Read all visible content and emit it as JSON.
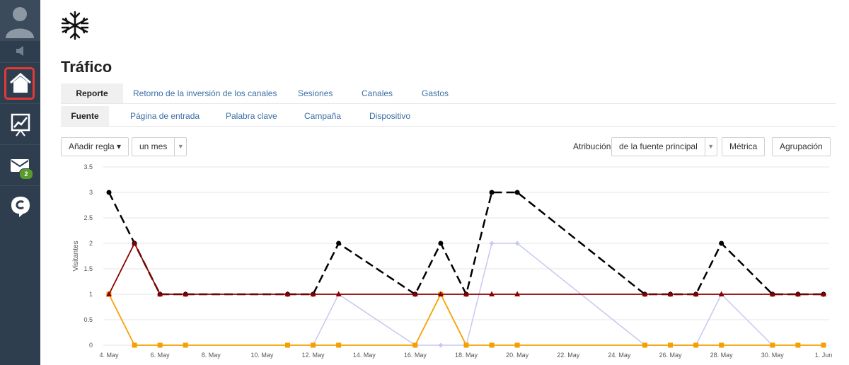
{
  "sidebar": {
    "mail_badge": "2"
  },
  "page": {
    "title": "Tráfico"
  },
  "tabs_primary": [
    {
      "label": "Reporte",
      "active": true
    },
    {
      "label": "Retorno de la inversión de los canales",
      "active": false
    },
    {
      "label": "Sesiones",
      "active": false
    },
    {
      "label": "Canales",
      "active": false
    },
    {
      "label": "Gastos",
      "active": false
    }
  ],
  "tabs_secondary": [
    {
      "label": "Fuente",
      "active": true
    },
    {
      "label": "Página de entrada",
      "active": false
    },
    {
      "label": "Palabra clave",
      "active": false
    },
    {
      "label": "Campaña",
      "active": false
    },
    {
      "label": "Dispositivo",
      "active": false
    }
  ],
  "controls": {
    "add_rule_label": "Añadir regla ▾",
    "period_value": "un mes",
    "attribution_label": "Atribución",
    "attribution_value": "de la fuente principal",
    "metric_label": "Métrica",
    "grouping_label": "Agrupación"
  },
  "colors": {
    "sidebar_bg": "#2f3e4e",
    "highlight": "#e53935",
    "link": "#3a6ea5",
    "series_black": "#000000",
    "series_darkred": "#8b0000",
    "series_orange": "#f5a000",
    "series_lavender": "#c8c8f0"
  },
  "icons": {
    "avatar": "user-avatar-icon",
    "speaker": "megaphone-icon",
    "home": "home-icon",
    "chart": "chart-icon",
    "mail": "mail-icon",
    "chat": "chat-icon",
    "logo": "snowflake-logo"
  },
  "chart_data": {
    "type": "line",
    "ylabel": "Visitantes",
    "ylim": [
      0,
      3.5
    ],
    "yticks": [
      "0",
      "0.5",
      "1",
      "1.5",
      "2",
      "2.5",
      "3",
      "3.5"
    ],
    "x_tick_labels": [
      "4. May",
      "6. May",
      "8. May",
      "10. May",
      "12. May",
      "14. May",
      "16. May",
      "18. May",
      "20. May",
      "22. May",
      "24. May",
      "26. May",
      "28. May",
      "30. May",
      "1. Jun"
    ],
    "x_days": [
      4,
      5,
      6,
      7,
      8,
      9,
      10,
      11,
      12,
      13,
      14,
      15,
      16,
      17,
      18,
      19,
      20,
      21,
      22,
      23,
      24,
      25,
      26,
      27,
      28,
      29,
      30,
      31,
      32
    ],
    "series": [
      {
        "key": "black",
        "style": "dashed",
        "marker": "circle",
        "points": [
          [
            4,
            3
          ],
          [
            5,
            2
          ],
          [
            6,
            1
          ],
          [
            7,
            1
          ],
          [
            11,
            1
          ],
          [
            12,
            1
          ],
          [
            13,
            2
          ],
          [
            16,
            1
          ],
          [
            17,
            2
          ],
          [
            18,
            1
          ],
          [
            19,
            3
          ],
          [
            20,
            3
          ],
          [
            25,
            1
          ],
          [
            26,
            1
          ],
          [
            27,
            1
          ],
          [
            28,
            2
          ],
          [
            30,
            1
          ],
          [
            31,
            1
          ],
          [
            32,
            1
          ]
        ]
      },
      {
        "key": "darkred",
        "style": "solid",
        "marker": "triangle",
        "points": [
          [
            4,
            1
          ],
          [
            5,
            2
          ],
          [
            6,
            1
          ],
          [
            7,
            1
          ],
          [
            11,
            1
          ],
          [
            12,
            1
          ],
          [
            13,
            1
          ],
          [
            16,
            1
          ],
          [
            17,
            1
          ],
          [
            18,
            1
          ],
          [
            19,
            1
          ],
          [
            20,
            1
          ],
          [
            25,
            1
          ],
          [
            26,
            1
          ],
          [
            27,
            1
          ],
          [
            28,
            1
          ],
          [
            30,
            1
          ],
          [
            31,
            1
          ],
          [
            32,
            1
          ]
        ]
      },
      {
        "key": "orange",
        "style": "solid",
        "marker": "square",
        "points": [
          [
            4,
            1
          ],
          [
            5,
            0
          ],
          [
            6,
            0
          ],
          [
            7,
            0
          ],
          [
            11,
            0
          ],
          [
            12,
            0
          ],
          [
            13,
            0
          ],
          [
            16,
            0
          ],
          [
            17,
            1
          ],
          [
            18,
            0
          ],
          [
            19,
            0
          ],
          [
            20,
            0
          ],
          [
            25,
            0
          ],
          [
            26,
            0
          ],
          [
            27,
            0
          ],
          [
            28,
            0
          ],
          [
            30,
            0
          ],
          [
            31,
            0
          ],
          [
            32,
            0
          ]
        ]
      },
      {
        "key": "lavender",
        "style": "solid",
        "marker": "diamond",
        "points": [
          [
            12,
            0
          ],
          [
            13,
            1
          ],
          [
            16,
            0
          ],
          [
            17,
            0
          ],
          [
            18,
            0
          ],
          [
            19,
            2
          ],
          [
            20,
            2
          ],
          [
            25,
            0
          ],
          [
            27,
            0
          ],
          [
            28,
            1
          ],
          [
            30,
            0
          ]
        ]
      }
    ]
  }
}
